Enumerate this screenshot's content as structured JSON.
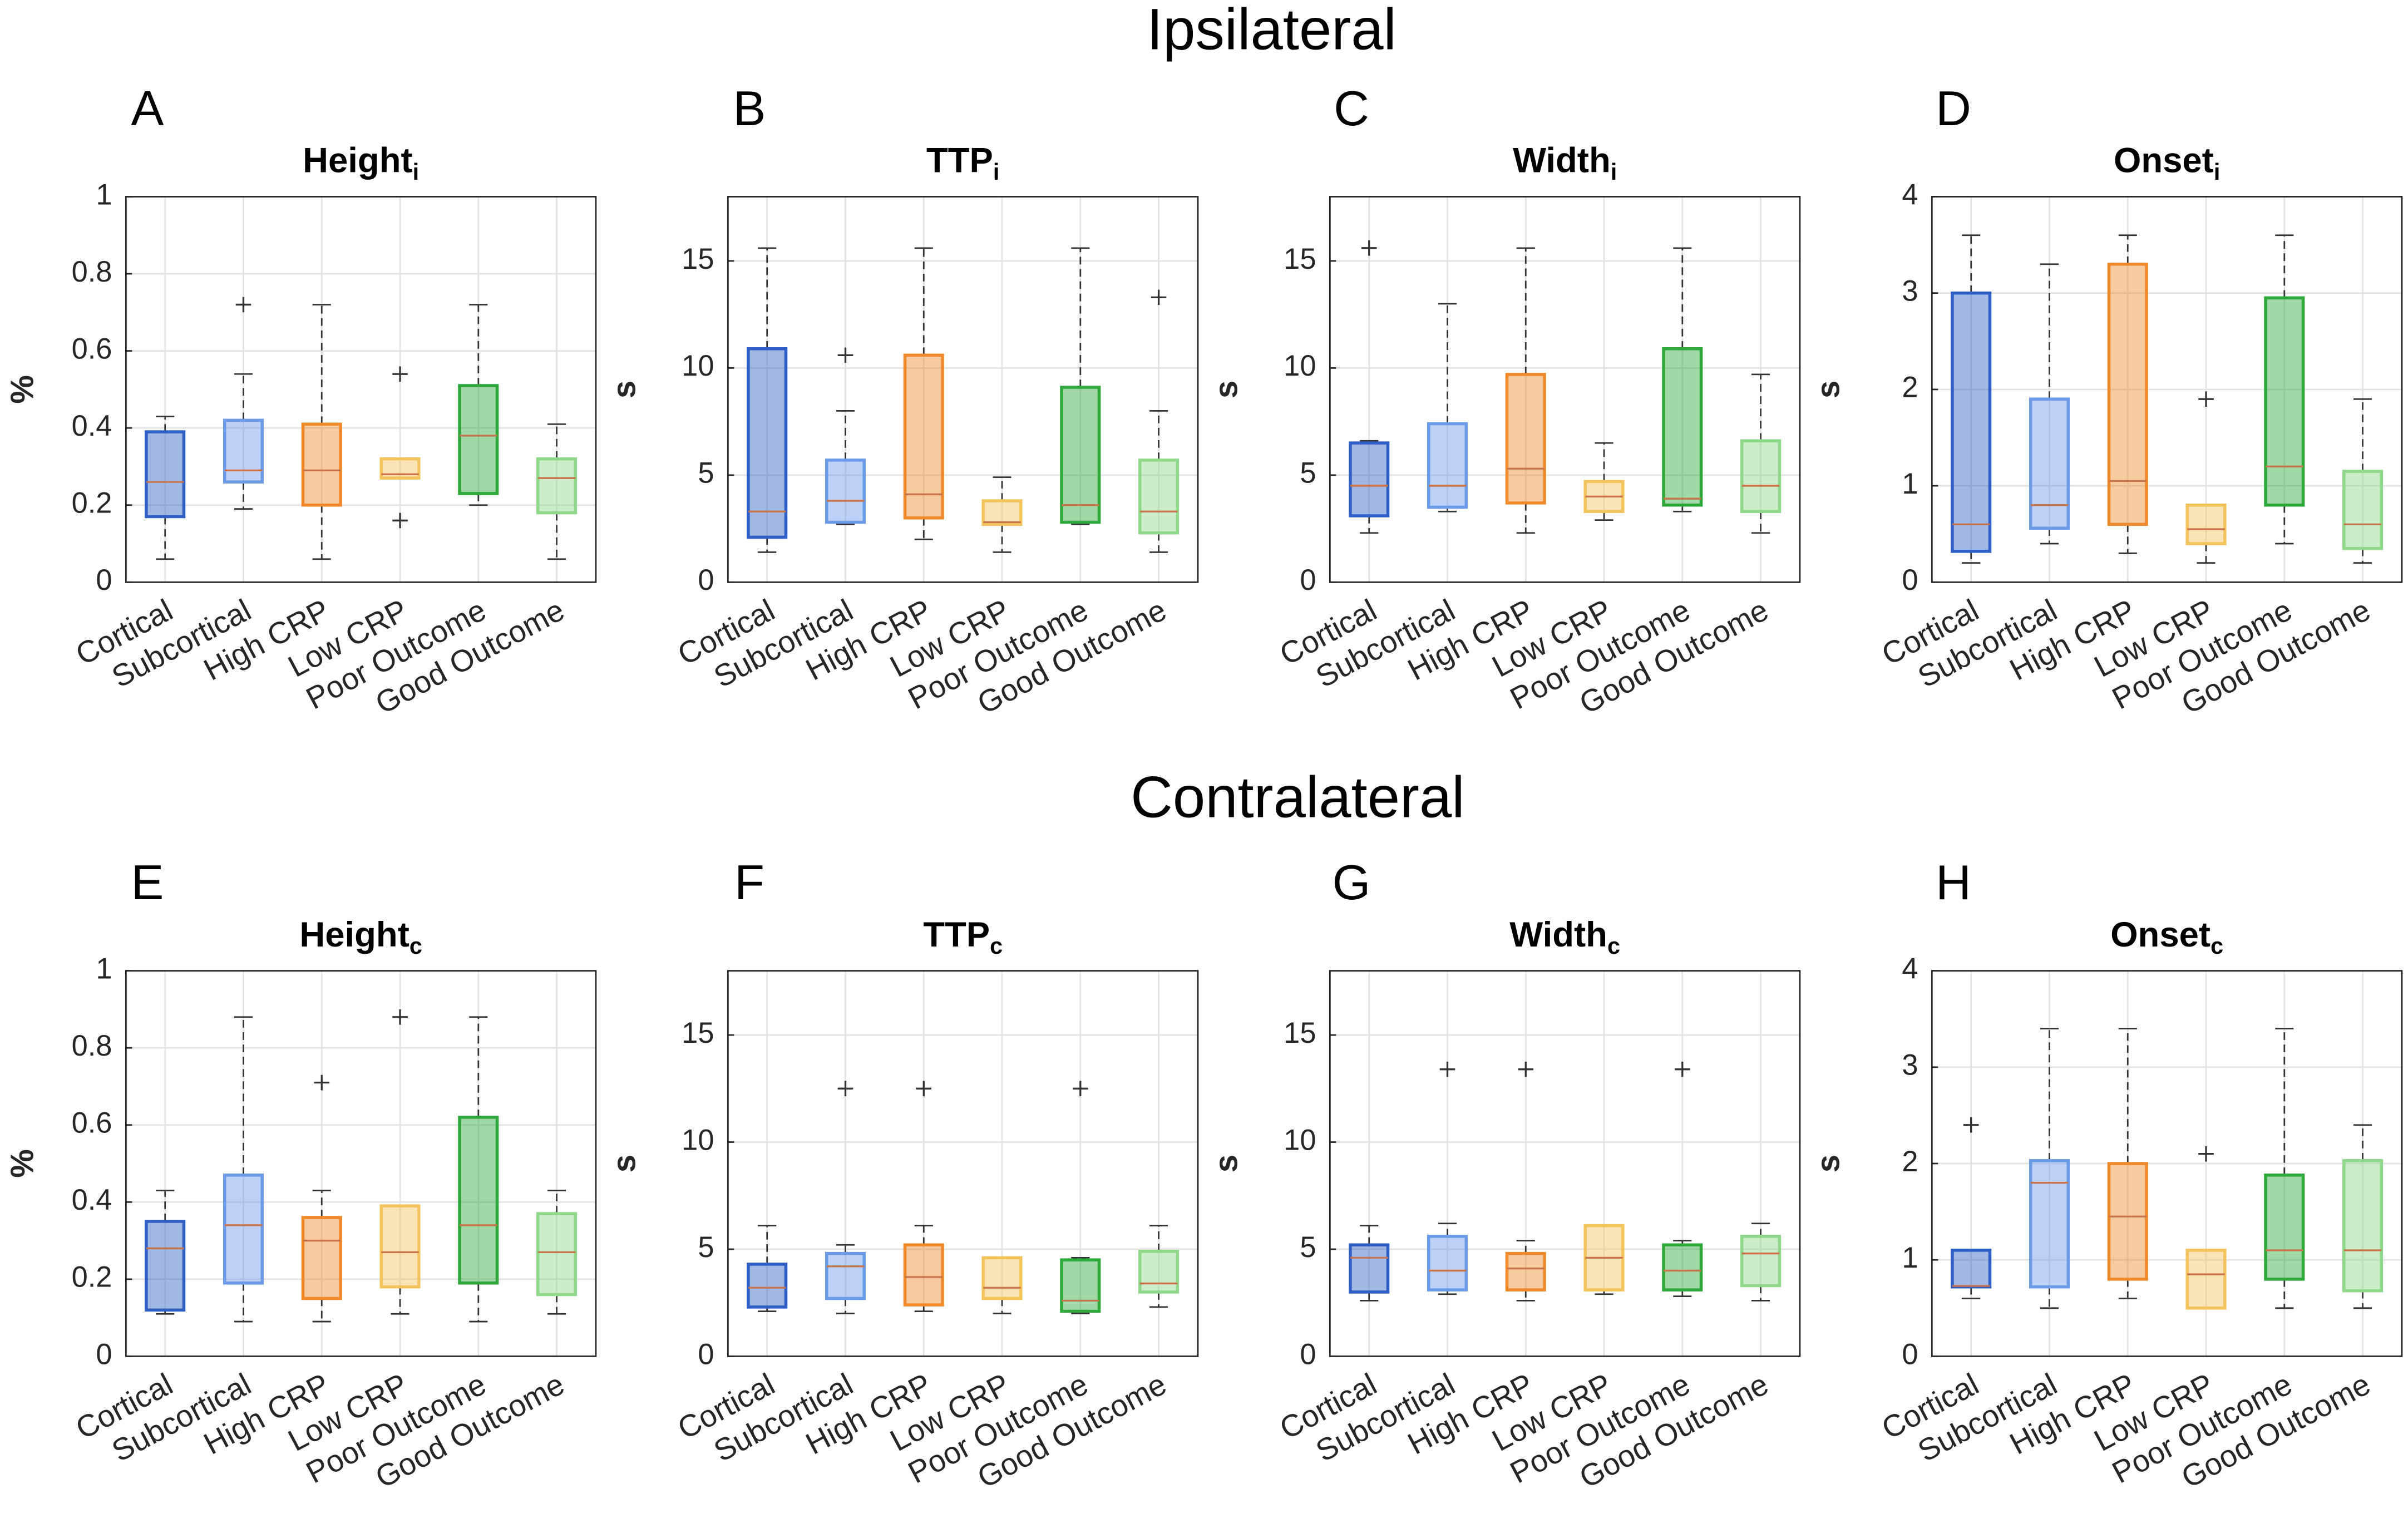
{
  "headings": [
    "Ipsilateral",
    "Contralateral"
  ],
  "chart_data": [
    {
      "type": "box",
      "label": "A",
      "title": "Height",
      "title_subscript": "i",
      "ylabel": "%",
      "categories": [
        "Cortical",
        "Subcortical",
        "High CRP",
        "Low CRP",
        "Poor Outcome",
        "Good Outcome"
      ],
      "colors": [
        "#2f5fc4",
        "#6a9ae8",
        "#ef8a2c",
        "#f3c45c",
        "#2fa83c",
        "#8fd88a"
      ],
      "ylim": [
        0,
        1
      ],
      "yticks": [
        0,
        0.2,
        0.4,
        0.6,
        0.8,
        1
      ],
      "grid": true,
      "boxes": [
        {
          "min": 0.06,
          "q1": 0.17,
          "median": 0.26,
          "q3": 0.39,
          "max": 0.43,
          "outliers": []
        },
        {
          "min": 0.19,
          "q1": 0.26,
          "median": 0.29,
          "q3": 0.42,
          "max": 0.54,
          "outliers": [
            0.72
          ]
        },
        {
          "min": 0.06,
          "q1": 0.2,
          "median": 0.29,
          "q3": 0.41,
          "max": 0.72,
          "outliers": []
        },
        {
          "min": 0.27,
          "q1": 0.27,
          "median": 0.28,
          "q3": 0.32,
          "max": 0.32,
          "outliers": [
            0.16,
            0.54
          ]
        },
        {
          "min": 0.2,
          "q1": 0.23,
          "median": 0.38,
          "q3": 0.51,
          "max": 0.72,
          "outliers": []
        },
        {
          "min": 0.06,
          "q1": 0.18,
          "median": 0.27,
          "q3": 0.32,
          "max": 0.41,
          "outliers": []
        }
      ]
    },
    {
      "type": "box",
      "label": "B",
      "title": "TTP",
      "title_subscript": "i",
      "ylabel": "s",
      "categories": [
        "Cortical",
        "Subcortical",
        "High CRP",
        "Low CRP",
        "Poor Outcome",
        "Good Outcome"
      ],
      "colors": [
        "#2f5fc4",
        "#6a9ae8",
        "#ef8a2c",
        "#f3c45c",
        "#2fa83c",
        "#8fd88a"
      ],
      "ylim": [
        0,
        18
      ],
      "yticks": [
        0,
        5,
        10,
        15
      ],
      "grid": true,
      "boxes": [
        {
          "min": 1.4,
          "q1": 2.1,
          "median": 3.3,
          "q3": 10.9,
          "max": 15.6,
          "outliers": []
        },
        {
          "min": 2.7,
          "q1": 2.8,
          "median": 3.8,
          "q3": 5.7,
          "max": 8.0,
          "outliers": [
            10.6
          ]
        },
        {
          "min": 2.0,
          "q1": 3.0,
          "median": 4.1,
          "q3": 10.6,
          "max": 15.6,
          "outliers": []
        },
        {
          "min": 1.4,
          "q1": 2.7,
          "median": 2.8,
          "q3": 3.8,
          "max": 4.9,
          "outliers": []
        },
        {
          "min": 2.7,
          "q1": 2.8,
          "median": 3.6,
          "q3": 9.1,
          "max": 15.6,
          "outliers": []
        },
        {
          "min": 1.4,
          "q1": 2.3,
          "median": 3.3,
          "q3": 5.7,
          "max": 8.0,
          "outliers": [
            13.3
          ]
        }
      ]
    },
    {
      "type": "box",
      "label": "C",
      "title": "Width",
      "title_subscript": "i",
      "ylabel": "s",
      "categories": [
        "Cortical",
        "Subcortical",
        "High CRP",
        "Low CRP",
        "Poor Outcome",
        "Good Outcome"
      ],
      "colors": [
        "#2f5fc4",
        "#6a9ae8",
        "#ef8a2c",
        "#f3c45c",
        "#2fa83c",
        "#8fd88a"
      ],
      "ylim": [
        0,
        18
      ],
      "yticks": [
        0,
        5,
        10,
        15
      ],
      "grid": true,
      "boxes": [
        {
          "min": 2.3,
          "q1": 3.1,
          "median": 4.5,
          "q3": 6.5,
          "max": 6.6,
          "outliers": [
            15.6
          ]
        },
        {
          "min": 3.3,
          "q1": 3.5,
          "median": 4.5,
          "q3": 7.4,
          "max": 13.0,
          "outliers": []
        },
        {
          "min": 2.3,
          "q1": 3.7,
          "median": 5.3,
          "q3": 9.7,
          "max": 15.6,
          "outliers": []
        },
        {
          "min": 2.9,
          "q1": 3.3,
          "median": 4.0,
          "q3": 4.7,
          "max": 6.5,
          "outliers": []
        },
        {
          "min": 3.3,
          "q1": 3.6,
          "median": 3.9,
          "q3": 10.9,
          "max": 15.6,
          "outliers": []
        },
        {
          "min": 2.3,
          "q1": 3.3,
          "median": 4.5,
          "q3": 6.6,
          "max": 9.7,
          "outliers": []
        }
      ]
    },
    {
      "type": "box",
      "label": "D",
      "title": "Onset",
      "title_subscript": "i",
      "ylabel": "s",
      "categories": [
        "Cortical",
        "Subcortical",
        "High CRP",
        "Low CRP",
        "Poor Outcome",
        "Good Outcome"
      ],
      "colors": [
        "#2f5fc4",
        "#6a9ae8",
        "#ef8a2c",
        "#f3c45c",
        "#2fa83c",
        "#8fd88a"
      ],
      "ylim": [
        0,
        4
      ],
      "yticks": [
        0,
        1,
        2,
        3,
        4
      ],
      "grid": true,
      "boxes": [
        {
          "min": 0.2,
          "q1": 0.32,
          "median": 0.6,
          "q3": 3.0,
          "max": 3.6,
          "outliers": []
        },
        {
          "min": 0.4,
          "q1": 0.56,
          "median": 0.8,
          "q3": 1.9,
          "max": 3.3,
          "outliers": []
        },
        {
          "min": 0.3,
          "q1": 0.6,
          "median": 1.05,
          "q3": 3.3,
          "max": 3.6,
          "outliers": []
        },
        {
          "min": 0.2,
          "q1": 0.4,
          "median": 0.55,
          "q3": 0.8,
          "max": 0.8,
          "outliers": [
            1.9
          ]
        },
        {
          "min": 0.4,
          "q1": 0.8,
          "median": 1.2,
          "q3": 2.95,
          "max": 3.6,
          "outliers": []
        },
        {
          "min": 0.2,
          "q1": 0.35,
          "median": 0.6,
          "q3": 1.15,
          "max": 1.9,
          "outliers": []
        }
      ]
    },
    {
      "type": "box",
      "label": "E",
      "title": "Height",
      "title_subscript": "c",
      "ylabel": "%",
      "categories": [
        "Cortical",
        "Subcortical",
        "High CRP",
        "Low CRP",
        "Poor Outcome",
        "Good Outcome"
      ],
      "colors": [
        "#2f5fc4",
        "#6a9ae8",
        "#ef8a2c",
        "#f3c45c",
        "#2fa83c",
        "#8fd88a"
      ],
      "ylim": [
        0,
        1
      ],
      "yticks": [
        0,
        0.2,
        0.4,
        0.6,
        0.8,
        1
      ],
      "grid": true,
      "boxes": [
        {
          "min": 0.11,
          "q1": 0.12,
          "median": 0.28,
          "q3": 0.35,
          "max": 0.43,
          "outliers": []
        },
        {
          "min": 0.09,
          "q1": 0.19,
          "median": 0.34,
          "q3": 0.47,
          "max": 0.88,
          "outliers": []
        },
        {
          "min": 0.09,
          "q1": 0.15,
          "median": 0.3,
          "q3": 0.36,
          "max": 0.43,
          "outliers": [
            0.71
          ]
        },
        {
          "min": 0.11,
          "q1": 0.18,
          "median": 0.27,
          "q3": 0.39,
          "max": 0.39,
          "outliers": [
            0.88
          ]
        },
        {
          "min": 0.09,
          "q1": 0.19,
          "median": 0.34,
          "q3": 0.62,
          "max": 0.88,
          "outliers": []
        },
        {
          "min": 0.11,
          "q1": 0.16,
          "median": 0.27,
          "q3": 0.37,
          "max": 0.43,
          "outliers": []
        }
      ]
    },
    {
      "type": "box",
      "label": "F",
      "title": "TTP",
      "title_subscript": "c",
      "ylabel": "s",
      "categories": [
        "Cortical",
        "Subcortical",
        "High CRP",
        "Low CRP",
        "Poor Outcome",
        "Good Outcome"
      ],
      "colors": [
        "#2f5fc4",
        "#6a9ae8",
        "#ef8a2c",
        "#f3c45c",
        "#2fa83c",
        "#8fd88a"
      ],
      "ylim": [
        0,
        18
      ],
      "yticks": [
        0,
        5,
        10,
        15
      ],
      "grid": true,
      "boxes": [
        {
          "min": 2.1,
          "q1": 2.3,
          "median": 3.2,
          "q3": 4.3,
          "max": 6.1,
          "outliers": []
        },
        {
          "min": 2.0,
          "q1": 2.7,
          "median": 4.2,
          "q3": 4.8,
          "max": 5.2,
          "outliers": [
            12.5
          ]
        },
        {
          "min": 2.1,
          "q1": 2.4,
          "median": 3.7,
          "q3": 5.2,
          "max": 6.1,
          "outliers": [
            12.5
          ]
        },
        {
          "min": 2.0,
          "q1": 2.7,
          "median": 3.2,
          "q3": 4.6,
          "max": 4.6,
          "outliers": []
        },
        {
          "min": 2.0,
          "q1": 2.1,
          "median": 2.6,
          "q3": 4.5,
          "max": 4.6,
          "outliers": [
            12.5
          ]
        },
        {
          "min": 2.3,
          "q1": 3.0,
          "median": 3.4,
          "q3": 4.9,
          "max": 6.1,
          "outliers": []
        }
      ]
    },
    {
      "type": "box",
      "label": "G",
      "title": "Width",
      "title_subscript": "c",
      "ylabel": "s",
      "categories": [
        "Cortical",
        "Subcortical",
        "High CRP",
        "Low CRP",
        "Poor Outcome",
        "Good Outcome"
      ],
      "colors": [
        "#2f5fc4",
        "#6a9ae8",
        "#ef8a2c",
        "#f3c45c",
        "#2fa83c",
        "#8fd88a"
      ],
      "ylim": [
        0,
        18
      ],
      "yticks": [
        0,
        5,
        10,
        15
      ],
      "grid": true,
      "boxes": [
        {
          "min": 2.6,
          "q1": 3.0,
          "median": 4.6,
          "q3": 5.2,
          "max": 6.1,
          "outliers": []
        },
        {
          "min": 2.9,
          "q1": 3.1,
          "median": 4.0,
          "q3": 5.6,
          "max": 6.2,
          "outliers": [
            13.4
          ]
        },
        {
          "min": 2.6,
          "q1": 3.1,
          "median": 4.1,
          "q3": 4.8,
          "max": 5.4,
          "outliers": [
            13.4
          ]
        },
        {
          "min": 2.9,
          "q1": 3.1,
          "median": 4.6,
          "q3": 6.1,
          "max": 6.1,
          "outliers": []
        },
        {
          "min": 2.8,
          "q1": 3.1,
          "median": 4.0,
          "q3": 5.2,
          "max": 5.4,
          "outliers": [
            13.4
          ]
        },
        {
          "min": 2.6,
          "q1": 3.3,
          "median": 4.8,
          "q3": 5.6,
          "max": 6.2,
          "outliers": []
        }
      ]
    },
    {
      "type": "box",
      "label": "H",
      "title": "Onset",
      "title_subscript": "c",
      "ylabel": "s",
      "categories": [
        "Cortical",
        "Subcortical",
        "High CRP",
        "Low CRP",
        "Poor Outcome",
        "Good Outcome"
      ],
      "colors": [
        "#2f5fc4",
        "#6a9ae8",
        "#ef8a2c",
        "#f3c45c",
        "#2fa83c",
        "#8fd88a"
      ],
      "ylim": [
        0,
        4
      ],
      "yticks": [
        0,
        1,
        2,
        3,
        4
      ],
      "grid": true,
      "boxes": [
        {
          "min": 0.6,
          "q1": 0.72,
          "median": 0.73,
          "q3": 1.1,
          "max": 1.1,
          "outliers": [
            2.4
          ]
        },
        {
          "min": 0.5,
          "q1": 0.72,
          "median": 1.8,
          "q3": 2.03,
          "max": 3.4,
          "outliers": []
        },
        {
          "min": 0.6,
          "q1": 0.8,
          "median": 1.45,
          "q3": 2.0,
          "max": 3.4,
          "outliers": []
        },
        {
          "min": 0.5,
          "q1": 0.5,
          "median": 0.85,
          "q3": 1.1,
          "max": 1.1,
          "outliers": [
            2.1
          ]
        },
        {
          "min": 0.5,
          "q1": 0.8,
          "median": 1.1,
          "q3": 1.88,
          "max": 3.4,
          "outliers": []
        },
        {
          "min": 0.5,
          "q1": 0.68,
          "median": 1.1,
          "q3": 2.03,
          "max": 2.4,
          "outliers": []
        }
      ]
    }
  ]
}
